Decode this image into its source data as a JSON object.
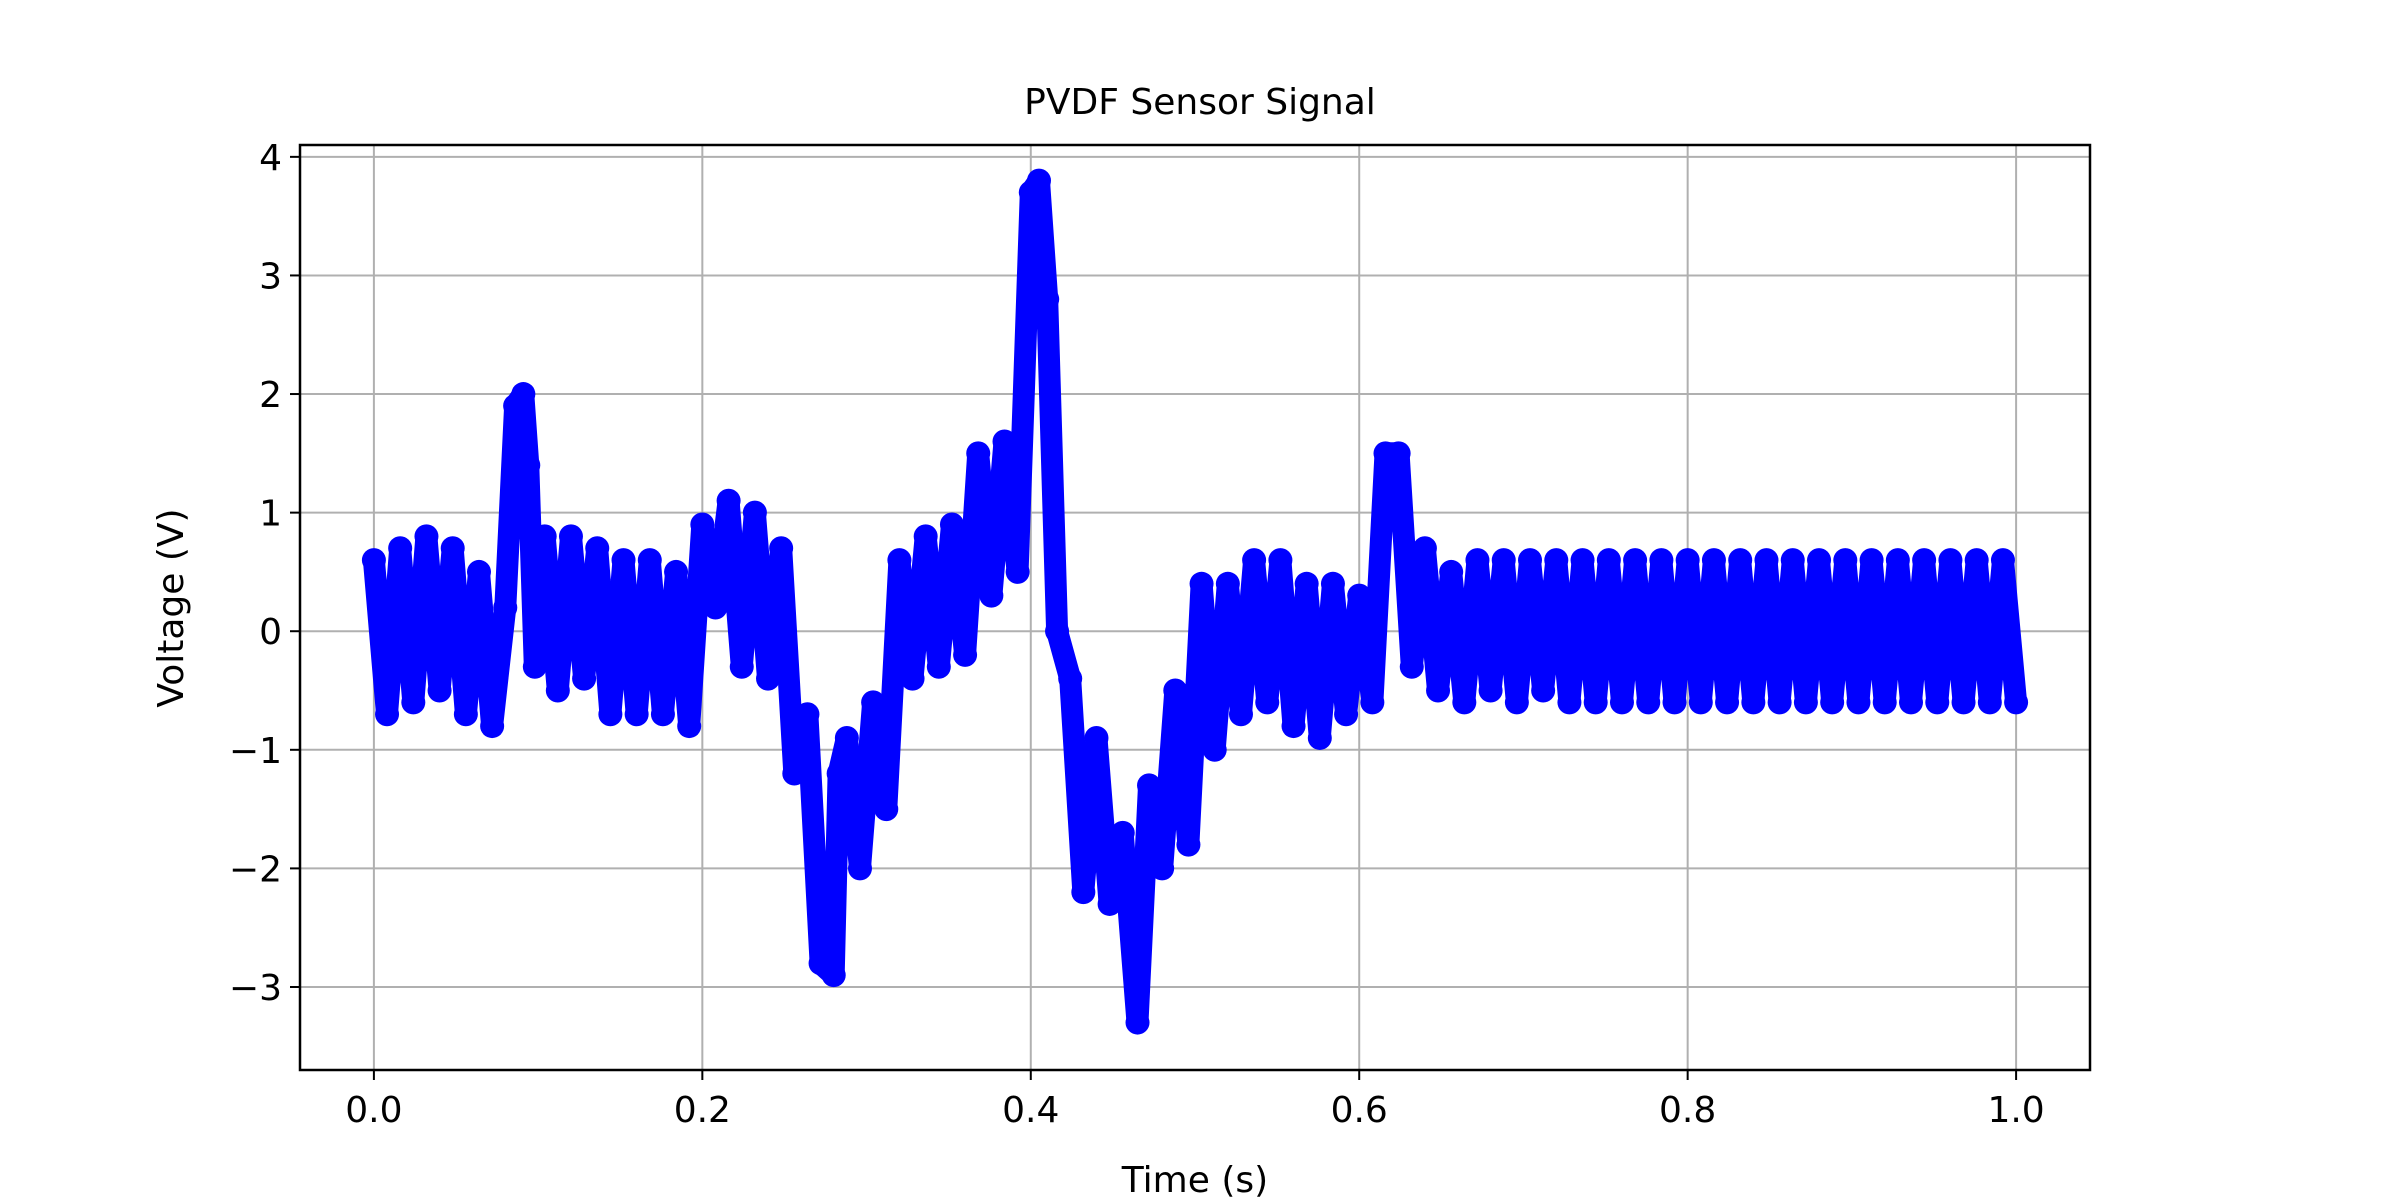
{
  "chart_data": {
    "type": "line",
    "title": "PVDF Sensor Signal",
    "xlabel": "Time (s)",
    "ylabel": "Voltage (V)",
    "xlim": [
      -0.045,
      1.045
    ],
    "ylim": [
      -3.7,
      4.1
    ],
    "grid": true,
    "x_ticks": [
      0.0,
      0.2,
      0.4,
      0.6,
      0.8,
      1.0
    ],
    "x_tick_labels": [
      "0.0",
      "0.2",
      "0.4",
      "0.6",
      "0.8",
      "1.0"
    ],
    "y_ticks": [
      -3,
      -2,
      -1,
      0,
      1,
      2,
      3,
      4
    ],
    "y_tick_labels": [
      "−3",
      "−2",
      "−1",
      "0",
      "1",
      "2",
      "3",
      "4"
    ],
    "series": [
      {
        "color": "#0000ff",
        "x": [
          0.0,
          0.008,
          0.016,
          0.024,
          0.032,
          0.04,
          0.048,
          0.056,
          0.064,
          0.072,
          0.08,
          0.086,
          0.091,
          0.094,
          0.098,
          0.104,
          0.112,
          0.12,
          0.128,
          0.136,
          0.144,
          0.152,
          0.16,
          0.168,
          0.176,
          0.184,
          0.192,
          0.2,
          0.208,
          0.216,
          0.224,
          0.232,
          0.24,
          0.248,
          0.256,
          0.264,
          0.272,
          0.28,
          0.283,
          0.288,
          0.296,
          0.304,
          0.312,
          0.32,
          0.328,
          0.336,
          0.344,
          0.352,
          0.36,
          0.368,
          0.376,
          0.384,
          0.392,
          0.4,
          0.405,
          0.41,
          0.416,
          0.424,
          0.432,
          0.44,
          0.448,
          0.456,
          0.465,
          0.472,
          0.48,
          0.488,
          0.496,
          0.504,
          0.512,
          0.52,
          0.528,
          0.536,
          0.544,
          0.552,
          0.56,
          0.568,
          0.576,
          0.584,
          0.592,
          0.6,
          0.608,
          0.616,
          0.624,
          0.632,
          0.64,
          0.648,
          0.656,
          0.664,
          0.672,
          0.68,
          0.688,
          0.696,
          0.704,
          0.712,
          0.72,
          0.728,
          0.736,
          0.744,
          0.752,
          0.76,
          0.768,
          0.776,
          0.784,
          0.792,
          0.8,
          0.808,
          0.816,
          0.824,
          0.832,
          0.84,
          0.848,
          0.856,
          0.864,
          0.872,
          0.88,
          0.888,
          0.896,
          0.904,
          0.912,
          0.92,
          0.928,
          0.936,
          0.944,
          0.952,
          0.96,
          0.968,
          0.976,
          0.984,
          0.992,
          1.0
        ],
        "y": [
          0.6,
          -0.7,
          0.7,
          -0.6,
          0.8,
          -0.5,
          0.7,
          -0.7,
          0.5,
          -0.8,
          0.2,
          1.9,
          2.0,
          1.4,
          -0.3,
          0.8,
          -0.5,
          0.8,
          -0.4,
          0.7,
          -0.7,
          0.6,
          -0.7,
          0.6,
          -0.7,
          0.5,
          -0.8,
          0.9,
          0.2,
          1.1,
          -0.3,
          1.0,
          -0.4,
          0.7,
          -1.2,
          -0.7,
          -2.8,
          -2.9,
          -1.2,
          -0.9,
          -2.0,
          -0.6,
          -1.5,
          0.6,
          -0.4,
          0.8,
          -0.3,
          0.9,
          -0.2,
          1.5,
          0.3,
          1.6,
          0.5,
          3.7,
          3.8,
          2.8,
          0.0,
          -0.4,
          -2.2,
          -0.9,
          -2.3,
          -1.7,
          -3.3,
          -1.3,
          -2.0,
          -0.5,
          -1.8,
          0.4,
          -1.0,
          0.4,
          -0.7,
          0.6,
          -0.6,
          0.6,
          -0.8,
          0.4,
          -0.9,
          0.4,
          -0.7,
          0.3,
          -0.6,
          1.5,
          1.5,
          -0.3,
          0.7,
          -0.5,
          0.5,
          -0.6,
          0.6,
          -0.5,
          0.6,
          -0.6,
          0.6,
          -0.5,
          0.6,
          -0.6,
          0.6,
          -0.6,
          0.6,
          -0.6,
          0.6,
          -0.6,
          0.6,
          -0.6,
          0.6,
          -0.6,
          0.6,
          -0.6,
          0.6,
          -0.6,
          0.6,
          -0.6,
          0.6,
          -0.6,
          0.6,
          -0.6,
          0.6,
          -0.6,
          0.6,
          -0.6,
          0.6,
          -0.6,
          0.6,
          -0.6,
          0.6,
          -0.6,
          0.6,
          -0.6,
          0.6,
          -0.6
        ]
      }
    ]
  }
}
